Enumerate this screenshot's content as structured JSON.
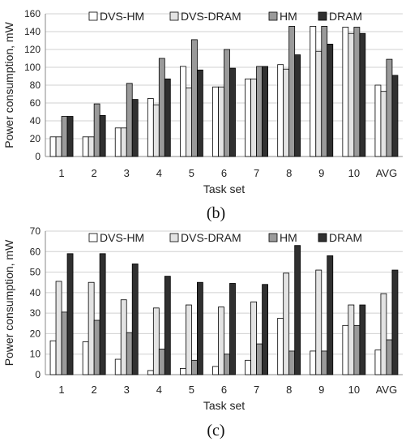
{
  "series_styles": [
    {
      "fill": "#ffffff",
      "stroke": "#000000"
    },
    {
      "fill": "#e3e3e3",
      "stroke": "#000000"
    },
    {
      "fill": "#9a9a9a",
      "stroke": "#000000"
    },
    {
      "fill": "#303030",
      "stroke": "#000000"
    }
  ],
  "chart_data": [
    {
      "type": "bar",
      "caption": "(b)",
      "xlabel": "Task set",
      "ylabel": "Power consumption, mW",
      "ylim": [
        0,
        160
      ],
      "yticks": [
        0,
        20,
        40,
        60,
        80,
        100,
        120,
        140,
        160
      ],
      "grid": true,
      "legend": "top",
      "categories": [
        "1",
        "2",
        "3",
        "4",
        "5",
        "6",
        "7",
        "8",
        "9",
        "10",
        "AVG"
      ],
      "series": [
        {
          "name": "DVS-HM",
          "values": [
            22,
            22,
            32,
            65,
            101,
            78,
            87,
            103,
            146,
            145,
            80
          ]
        },
        {
          "name": "DVS-DRAM",
          "values": [
            22,
            22,
            32,
            58,
            77,
            78,
            87,
            98,
            118,
            138,
            73
          ]
        },
        {
          "name": "HM",
          "values": [
            45,
            59,
            82,
            110,
            131,
            120,
            101,
            146,
            146,
            145,
            109
          ]
        },
        {
          "name": "DRAM",
          "values": [
            45,
            46,
            64,
            87,
            97,
            99,
            101,
            114,
            126,
            138,
            91
          ]
        }
      ]
    },
    {
      "type": "bar",
      "caption": "(c)",
      "xlabel": "Task set",
      "ylabel": "Power consumption, mW",
      "ylim": [
        0,
        70
      ],
      "yticks": [
        0,
        10,
        20,
        30,
        40,
        50,
        60,
        70
      ],
      "grid": true,
      "legend": "top",
      "categories": [
        "1",
        "2",
        "3",
        "4",
        "5",
        "6",
        "7",
        "8",
        "9",
        "10",
        "AVG"
      ],
      "series": [
        {
          "name": "DVS-HM",
          "values": [
            16.5,
            16,
            7.5,
            2,
            3,
            4,
            7,
            27.5,
            11.5,
            24,
            12
          ]
        },
        {
          "name": "DVS-DRAM",
          "values": [
            45.5,
            45,
            36.5,
            32.5,
            34,
            33,
            35.5,
            49.5,
            51,
            34,
            39.5
          ]
        },
        {
          "name": "HM",
          "values": [
            30.5,
            26.5,
            20.5,
            12.5,
            7,
            10,
            15,
            11.5,
            11.5,
            24,
            17
          ]
        },
        {
          "name": "DRAM",
          "values": [
            59,
            59,
            54,
            48,
            45,
            44.5,
            44,
            63,
            58,
            34,
            51
          ]
        }
      ]
    }
  ]
}
